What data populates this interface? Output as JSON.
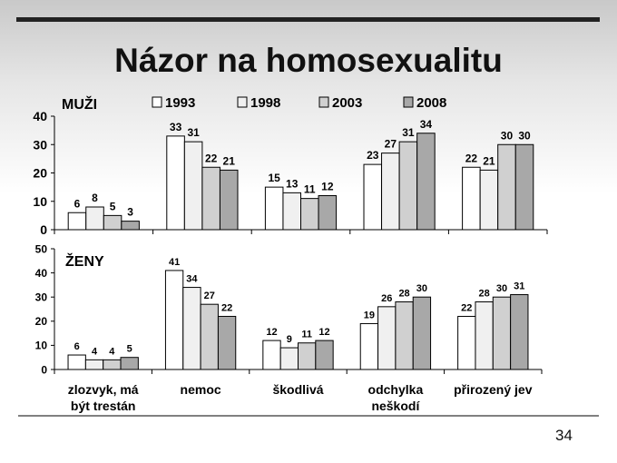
{
  "slide": {
    "title": "Názor na homosexualitu",
    "page_number": "34"
  },
  "chart_data": [
    {
      "type": "bar",
      "label": "MUŽI",
      "categories": [
        "zlozvyk, má být trestán",
        "nemoc",
        "škodlivá",
        "odchylka neškodí",
        "přirozený jev"
      ],
      "series": [
        {
          "name": "1993",
          "values": [
            6,
            33,
            15,
            23,
            22
          ]
        },
        {
          "name": "1998",
          "values": [
            8,
            31,
            13,
            27,
            21
          ]
        },
        {
          "name": "2003",
          "values": [
            5,
            22,
            11,
            31,
            30
          ]
        },
        {
          "name": "2008",
          "values": [
            3,
            21,
            12,
            34,
            30
          ]
        }
      ],
      "ylim": [
        0,
        40
      ],
      "yticks": [
        0,
        10,
        20,
        30,
        40
      ],
      "legend": "top",
      "grid": false
    },
    {
      "type": "bar",
      "label": "ŽENY",
      "categories": [
        "zlozvyk, má být trestán",
        "nemoc",
        "škodlivá",
        "odchylka neškodí",
        "přirozený jev"
      ],
      "category_lines": [
        [
          "zlozvyk, má",
          "být trestán"
        ],
        [
          "nemoc"
        ],
        [
          "škodlivá"
        ],
        [
          "odchylka",
          "neškodí"
        ],
        [
          "přirozený jev"
        ]
      ],
      "series": [
        {
          "name": "1993",
          "values": [
            6,
            41,
            12,
            19,
            22
          ]
        },
        {
          "name": "1998",
          "values": [
            4,
            34,
            9,
            26,
            28
          ]
        },
        {
          "name": "2003",
          "values": [
            4,
            27,
            11,
            28,
            30
          ]
        },
        {
          "name": "2008",
          "values": [
            5,
            22,
            12,
            30,
            31
          ]
        }
      ],
      "ylim": [
        0,
        50
      ],
      "yticks": [
        0,
        10,
        20,
        30,
        40,
        50
      ],
      "grid": false
    }
  ],
  "colors": {
    "series": [
      "#ffffff",
      "#f0f0f0",
      "#d0d0d0",
      "#a8a8a8"
    ],
    "bar_stroke": "#000000",
    "axis": "#000000"
  }
}
